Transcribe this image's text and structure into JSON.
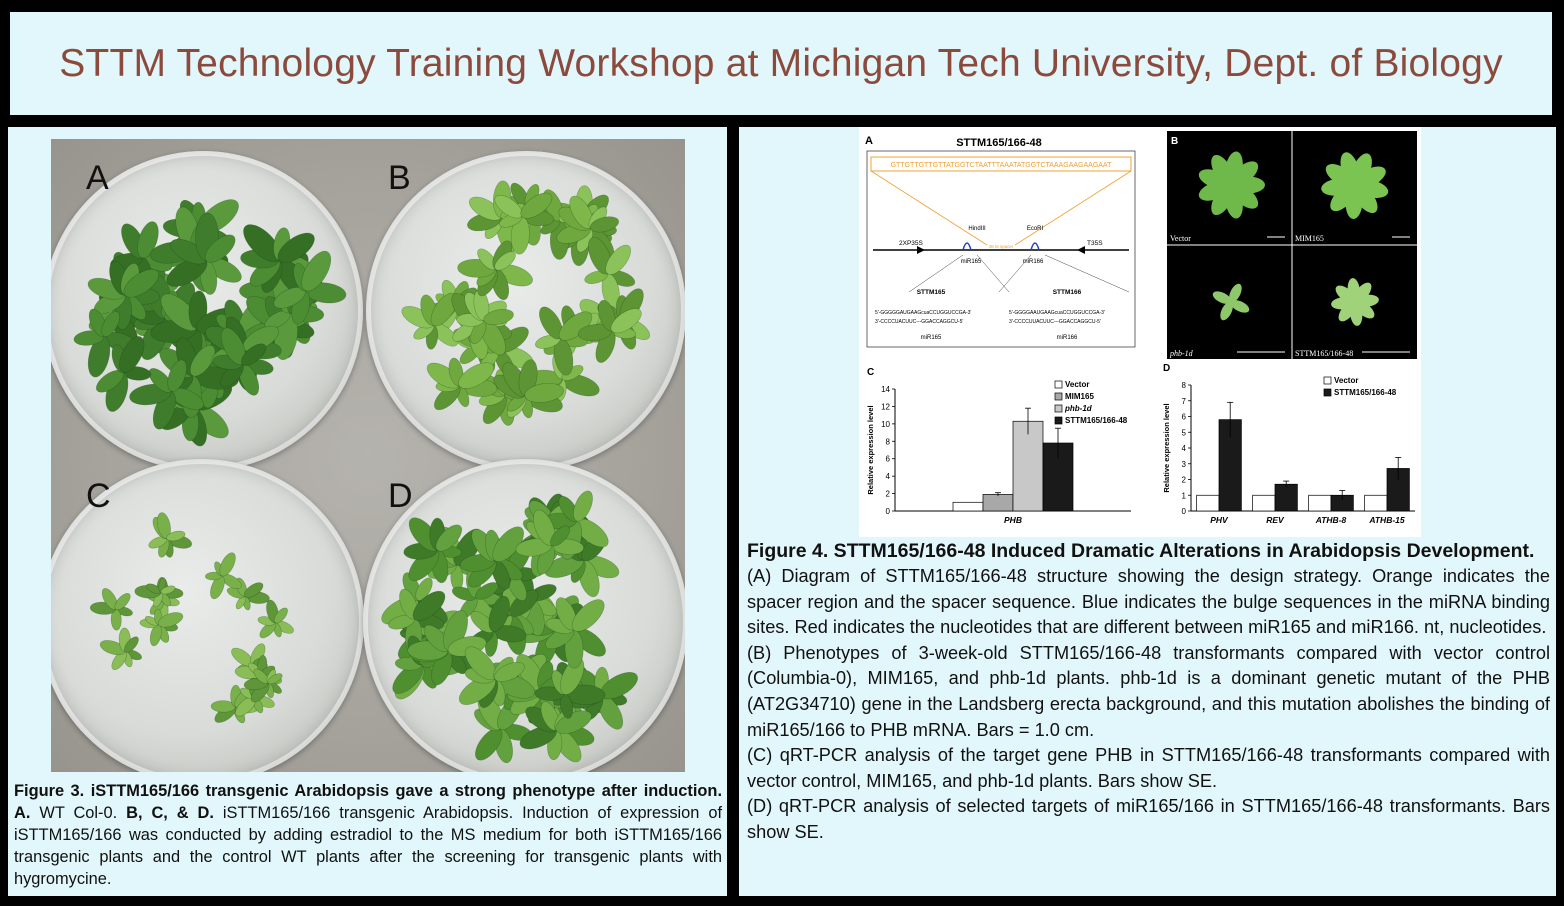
{
  "banner": {
    "title": "STTM Technology Training Workshop at Michigan Tech University, Dept. of Biology"
  },
  "left": {
    "plates": [
      {
        "label": "A"
      },
      {
        "label": "B"
      },
      {
        "label": "C"
      },
      {
        "label": "D"
      }
    ],
    "caption": {
      "title": "Figure 3. iSTTM165/166 transgenic Arabidopsis gave a strong phenotype after induction.",
      "a_lbl": "A.",
      "a_text": "WT Col-0.",
      "bcd_lbl": "B, C, & D.",
      "bcd_text": "iSTTM165/166 transgenic Arabidopsis. Induction of expression of iSTTM165/166 was conducted by adding estradiol to the MS medium for both iSTTM165/166 transgenic plants and the control WT plants after the screening for transgenic plants with hygromycine."
    }
  },
  "right": {
    "panelA": {
      "letter": "A",
      "title": "STTM165/166-48",
      "sequence": "GTTGTTGTTGTTATGGTCTAATTTAAATATGGTCTAAAGAAGAAGAAT",
      "hind": "HindIII",
      "eco": "EcoRI",
      "promoter": "2XP35S",
      "terminator": "T35S",
      "spacer": "48 nt spacer",
      "mir_left": "miR165",
      "mir_right": "miR166",
      "sttm_left": "STTM165",
      "sttm_right": "STTM166",
      "seq_l1": "5'-GGGGGAUGAAGcuaCCUGGUCCGA-3'",
      "seq_l2": "3'-CCCCUACUUC---GGACCAGGCU-5'",
      "seq_r1": "5'-GGGGAAUGAAGcuaCCUGGUCCGA-3'",
      "seq_r2": "3'-CCCCUUACUUC---GGACCAGGCU-5'",
      "mir_bottom_left": "miR165",
      "mir_bottom_right": "miR166"
    },
    "panelB": {
      "letter": "B",
      "cells": [
        {
          "label": "Vector"
        },
        {
          "label": "MIM165"
        },
        {
          "label": "phb-1d"
        },
        {
          "label": "STTM165/166-48"
        }
      ]
    },
    "caption": {
      "title": "Figure 4. STTM165/166-48 Induced Dramatic Alterations in Arabidopsis Development.",
      "paras": [
        {
          "lbl": "(A)",
          "text": " Diagram of STTM165/166-48 structure showing the design strategy. Orange indicates the spacer region and the spacer sequence. Blue indicates the bulge sequences in the miRNA binding sites. Red indicates the nucleotides that are different between miR165 and miR166. nt, nucleotides."
        },
        {
          "lbl": "(B)",
          "text": " Phenotypes of 3-week-old STTM165/166-48 transformants compared with vector control (Columbia-0), MIM165, and phb-1d plants. phb-1d is a dominant genetic mutant of the PHB (AT2G34710) gene in the Landsberg erecta background, and this mutation abolishes the binding of miR165/166 to PHB mRNA. Bars = 1.0 cm."
        },
        {
          "lbl": "(C)",
          "text": " qRT-PCR analysis of the target gene PHB in STTM165/166-48 transformants compared with vector control, MIM165, and phb-1d plants. Bars show SE."
        },
        {
          "lbl": "(D)",
          "text": " qRT-PCR analysis of selected targets of miR165/166 in STTM165/166-48 transformants. Bars show SE."
        }
      ]
    }
  },
  "colors": {
    "banner_text": "#8c4a3c",
    "panel_bg": "#e2f7fb",
    "orange": "#f0a030",
    "blue": "#2040c0",
    "red": "#c02020"
  },
  "chart_data": [
    {
      "panel": "C",
      "type": "bar",
      "ylabel": "Relative expression level",
      "ylim": [
        0,
        14
      ],
      "yticks": [
        0,
        2,
        4,
        6,
        8,
        10,
        12,
        14
      ],
      "categories": [
        "PHB"
      ],
      "series": [
        {
          "name": "Vector",
          "values": [
            1.0
          ],
          "err": [
            0
          ],
          "fill": "#ffffff"
        },
        {
          "name": "MIM165",
          "values": [
            1.9
          ],
          "err": [
            0.2
          ],
          "fill": "#a8a8a8"
        },
        {
          "name": "phb-1d",
          "values": [
            10.3
          ],
          "err": [
            1.5
          ],
          "fill": "#c8c8c8"
        },
        {
          "name": "STTM165/166-48",
          "values": [
            7.8
          ],
          "err": [
            1.7
          ],
          "fill": "#1a1a1a"
        }
      ],
      "legend": "top-right"
    },
    {
      "panel": "D",
      "type": "bar",
      "ylabel": "Relative expression level",
      "ylim": [
        0,
        8
      ],
      "yticks": [
        0,
        1,
        2,
        3,
        4,
        5,
        6,
        7,
        8
      ],
      "categories": [
        "PHV",
        "REV",
        "ATHB-8",
        "ATHB-15"
      ],
      "series": [
        {
          "name": "Vector",
          "values": [
            1.0,
            1.0,
            1.0,
            1.0
          ],
          "err": [
            0,
            0,
            0,
            0
          ],
          "fill": "#ffffff"
        },
        {
          "name": "STTM165/166-48",
          "values": [
            5.8,
            1.7,
            1.0,
            2.7
          ],
          "err": [
            1.1,
            0.2,
            0.3,
            0.7
          ],
          "fill": "#1a1a1a"
        }
      ],
      "legend": "top-right"
    }
  ]
}
